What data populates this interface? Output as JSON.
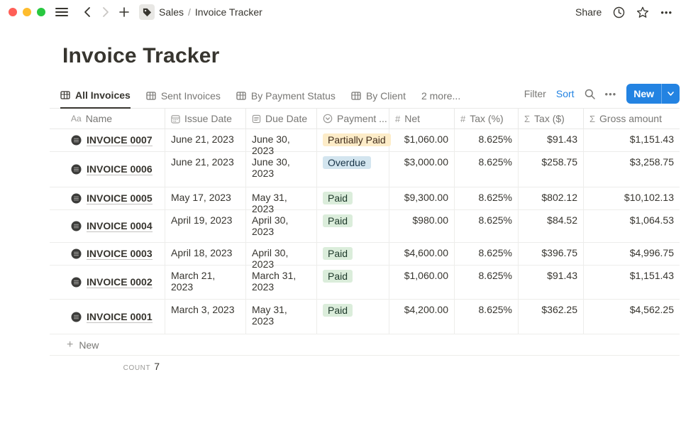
{
  "titlebar": {
    "breadcrumb_section": "Sales",
    "breadcrumb_separator": "/",
    "breadcrumb_page": "Invoice Tracker",
    "share_label": "Share"
  },
  "page": {
    "title": "Invoice Tracker"
  },
  "toolbar": {
    "tabs": [
      {
        "label": "All Invoices",
        "active": true,
        "icon": "table-view-icon"
      },
      {
        "label": "Sent Invoices",
        "active": false,
        "icon": "table-view-icon"
      },
      {
        "label": "By Payment Status",
        "active": false,
        "icon": "table-view-icon"
      },
      {
        "label": "By Client",
        "active": false,
        "icon": "table-view-icon"
      }
    ],
    "more_label": "2 more...",
    "filter_label": "Filter",
    "sort_label": "Sort",
    "new_label": "New"
  },
  "table": {
    "columns": [
      {
        "icon": "text-property-icon",
        "label": "Name"
      },
      {
        "icon": "calendar-icon",
        "label": "Issue Date"
      },
      {
        "icon": "list-icon",
        "label": "Due Date"
      },
      {
        "icon": "select-icon",
        "label": "Payment ..."
      },
      {
        "icon": "number-icon",
        "label": "Net"
      },
      {
        "icon": "number-icon",
        "label": "Tax (%)"
      },
      {
        "icon": "sum-icon",
        "label": "Tax ($)"
      },
      {
        "icon": "sum-icon",
        "label": "Gross amount"
      }
    ],
    "rows": [
      {
        "name": "INVOICE 0007",
        "issue_date": "June 21, 2023",
        "due_date": "June 30, 2023",
        "status": "Partially Paid",
        "status_color": "yellow",
        "net": "$1,060.00",
        "tax_pct": "8.625%",
        "tax_usd": "$91.43",
        "gross": "$1,151.43"
      },
      {
        "name": "INVOICE 0006",
        "issue_date": "June 21, 2023",
        "due_date": "June 30, 2023",
        "status": "Overdue",
        "status_color": "blue",
        "net": "$3,000.00",
        "tax_pct": "8.625%",
        "tax_usd": "$258.75",
        "gross": "$3,258.75"
      },
      {
        "name": "INVOICE 0005",
        "issue_date": "May 17, 2023",
        "due_date": "May 31, 2023",
        "status": "Paid",
        "status_color": "green",
        "net": "$9,300.00",
        "tax_pct": "8.625%",
        "tax_usd": "$802.12",
        "gross": "$10,102.13"
      },
      {
        "name": "INVOICE 0004",
        "issue_date": "April 19, 2023",
        "due_date": "April 30, 2023",
        "status": "Paid",
        "status_color": "green",
        "net": "$980.00",
        "tax_pct": "8.625%",
        "tax_usd": "$84.52",
        "gross": "$1,064.53"
      },
      {
        "name": "INVOICE 0003",
        "issue_date": "April 18, 2023",
        "due_date": "April 30, 2023",
        "status": "Paid",
        "status_color": "green",
        "net": "$4,600.00",
        "tax_pct": "8.625%",
        "tax_usd": "$396.75",
        "gross": "$4,996.75"
      },
      {
        "name": "INVOICE 0002",
        "issue_date": "March 21, 2023",
        "due_date": "March 31, 2023",
        "status": "Paid",
        "status_color": "green",
        "net": "$1,060.00",
        "tax_pct": "8.625%",
        "tax_usd": "$91.43",
        "gross": "$1,151.43"
      },
      {
        "name": "INVOICE 0001",
        "issue_date": "March 3, 2023",
        "due_date": "May 31, 2023",
        "status": "Paid",
        "status_color": "green",
        "net": "$4,200.00",
        "tax_pct": "8.625%",
        "tax_usd": "$362.25",
        "gross": "$4,562.25"
      }
    ],
    "new_row_label": "New",
    "count_label": "count",
    "count_value": "7"
  },
  "badge_colors": {
    "yellow": {
      "bg": "#fdecc8",
      "fg": "#402c1b"
    },
    "blue": {
      "bg": "#d3e5ef",
      "fg": "#183347"
    },
    "green": {
      "bg": "#dbeddb",
      "fg": "#1c3829"
    }
  },
  "colors": {
    "accent_blue": "#2383e2",
    "text": "#37352f",
    "muted": "#787774"
  }
}
